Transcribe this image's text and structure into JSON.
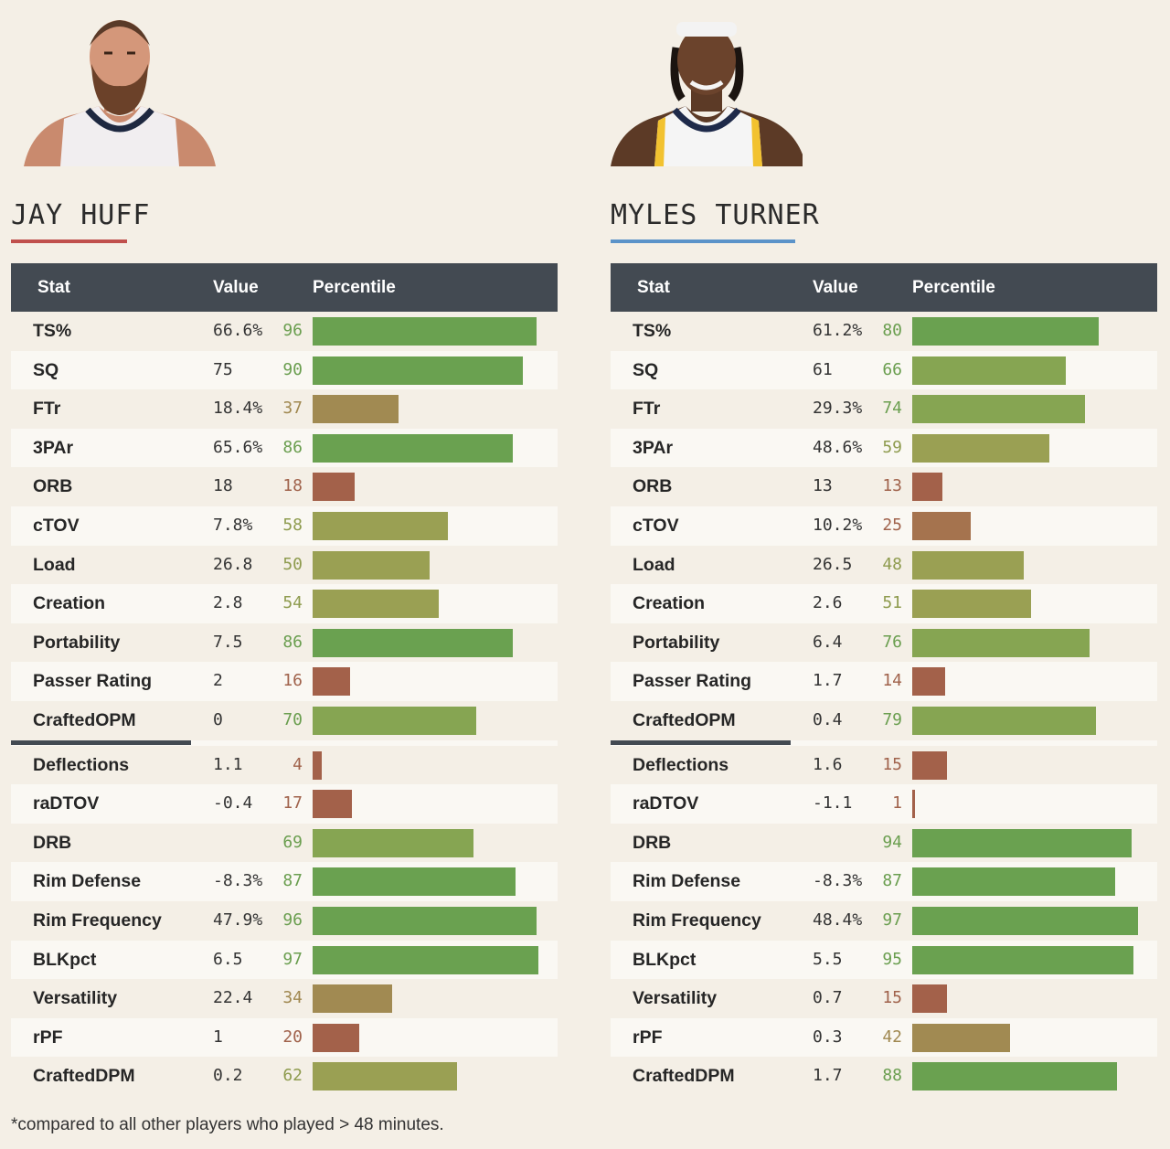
{
  "players": [
    {
      "name": "JAY HUFF",
      "accent": "#c0504d",
      "stats": [
        {
          "stat": "TS%",
          "value": "66.6%",
          "percentile": 96
        },
        {
          "stat": "SQ",
          "value": "75",
          "percentile": 90
        },
        {
          "stat": "FTr",
          "value": "18.4%",
          "percentile": 37
        },
        {
          "stat": "3PAr",
          "value": "65.6%",
          "percentile": 86
        },
        {
          "stat": "ORB",
          "value": "18",
          "percentile": 18
        },
        {
          "stat": "cTOV",
          "value": "7.8%",
          "percentile": 58
        },
        {
          "stat": "Load",
          "value": "26.8",
          "percentile": 50
        },
        {
          "stat": "Creation",
          "value": "2.8",
          "percentile": 54
        },
        {
          "stat": "Portability",
          "value": "7.5",
          "percentile": 86
        },
        {
          "stat": "Passer Rating",
          "value": "2",
          "percentile": 16
        },
        {
          "stat": "CraftedOPM",
          "value": "0",
          "percentile": 70
        },
        {
          "stat": "Deflections",
          "value": "1.1",
          "percentile": 4
        },
        {
          "stat": "raDTOV",
          "value": "-0.4",
          "percentile": 17
        },
        {
          "stat": "DRB",
          "value": "",
          "percentile": 69
        },
        {
          "stat": "Rim Defense",
          "value": "-8.3%",
          "percentile": 87
        },
        {
          "stat": "Rim Frequency",
          "value": "47.9%",
          "percentile": 96
        },
        {
          "stat": "BLKpct",
          "value": "6.5",
          "percentile": 97
        },
        {
          "stat": "Versatility",
          "value": "22.4",
          "percentile": 34
        },
        {
          "stat": "rPF",
          "value": "1",
          "percentile": 20
        },
        {
          "stat": "CraftedDPM",
          "value": "0.2",
          "percentile": 62
        }
      ]
    },
    {
      "name": "MYLES TURNER",
      "accent": "#5b93c9",
      "stats": [
        {
          "stat": "TS%",
          "value": "61.2%",
          "percentile": 80
        },
        {
          "stat": "SQ",
          "value": "61",
          "percentile": 66
        },
        {
          "stat": "FTr",
          "value": "29.3%",
          "percentile": 74
        },
        {
          "stat": "3PAr",
          "value": "48.6%",
          "percentile": 59
        },
        {
          "stat": "ORB",
          "value": "13",
          "percentile": 13
        },
        {
          "stat": "cTOV",
          "value": "10.2%",
          "percentile": 25
        },
        {
          "stat": "Load",
          "value": "26.5",
          "percentile": 48
        },
        {
          "stat": "Creation",
          "value": "2.6",
          "percentile": 51
        },
        {
          "stat": "Portability",
          "value": "6.4",
          "percentile": 76
        },
        {
          "stat": "Passer Rating",
          "value": "1.7",
          "percentile": 14
        },
        {
          "stat": "CraftedOPM",
          "value": "0.4",
          "percentile": 79
        },
        {
          "stat": "Deflections",
          "value": "1.6",
          "percentile": 15
        },
        {
          "stat": "raDTOV",
          "value": "-1.1",
          "percentile": 1
        },
        {
          "stat": "DRB",
          "value": "",
          "percentile": 94
        },
        {
          "stat": "Rim Defense",
          "value": "-8.3%",
          "percentile": 87
        },
        {
          "stat": "Rim Frequency",
          "value": "48.4%",
          "percentile": 97
        },
        {
          "stat": "BLKpct",
          "value": "5.5",
          "percentile": 95
        },
        {
          "stat": "Versatility",
          "value": "0.7",
          "percentile": 15
        },
        {
          "stat": "rPF",
          "value": "0.3",
          "percentile": 42
        },
        {
          "stat": "CraftedDPM",
          "value": "1.7",
          "percentile": 88
        }
      ]
    }
  ],
  "headers": {
    "stat": "Stat",
    "value": "Value",
    "percentile": "Percentile"
  },
  "footnote": "*compared to all other players who played > 48 minutes."
}
